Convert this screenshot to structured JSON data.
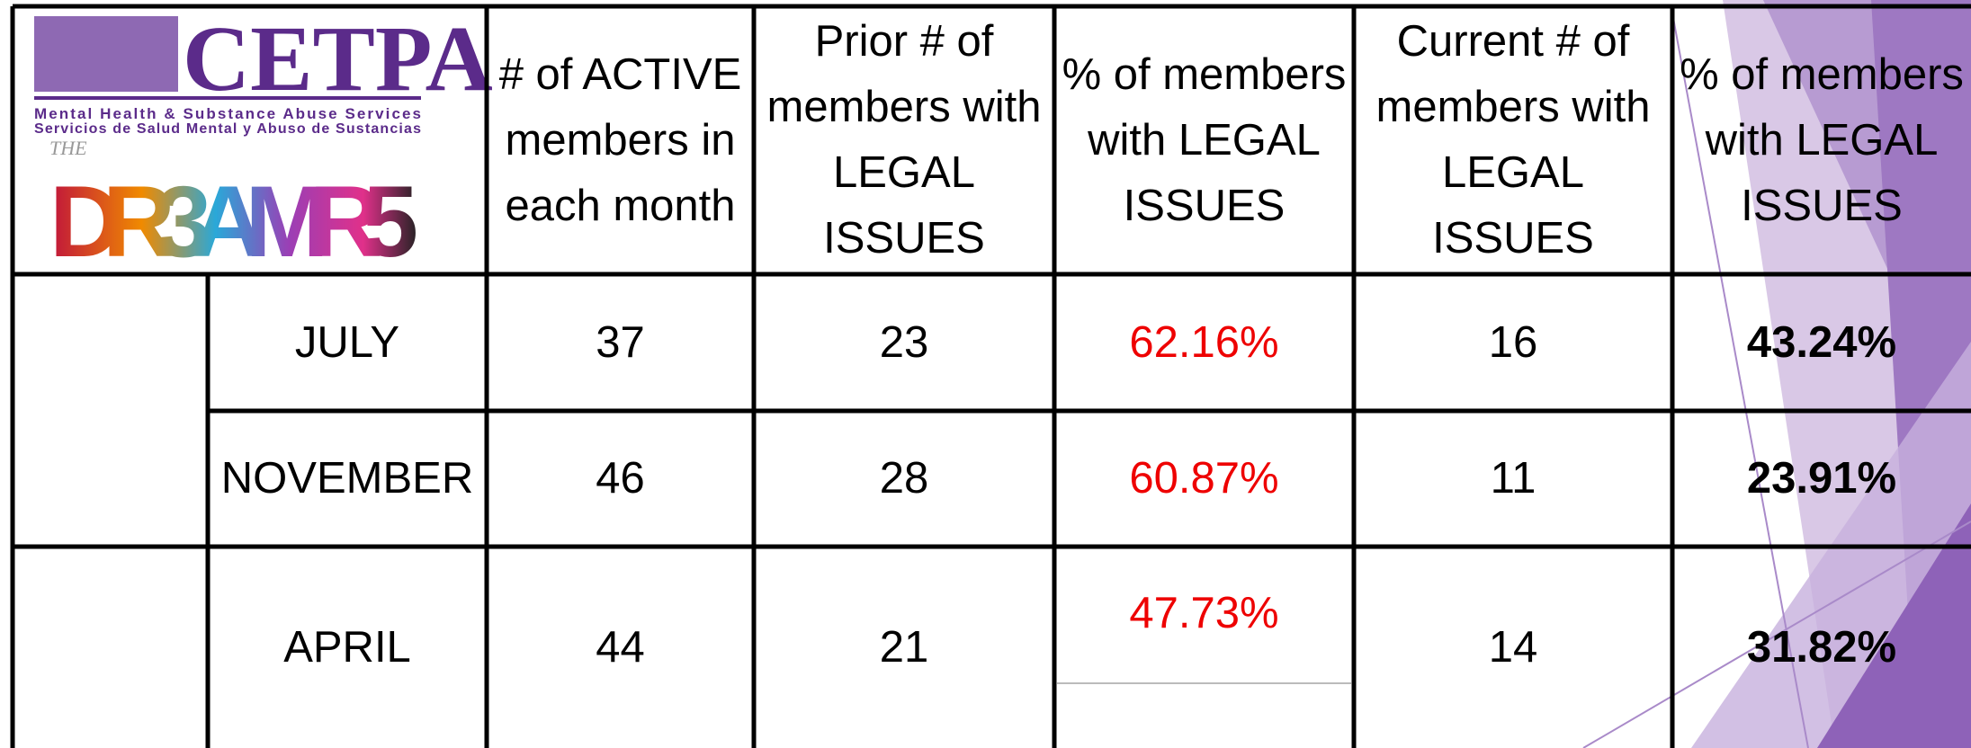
{
  "logo": {
    "name": "CETPA",
    "tagline_en": "Mental Health & Substance Abuse Services",
    "tagline_es": "Servicios de Salud Mental y Abuso de Sustancias",
    "the": "THE",
    "dreamers": "DR3AMR5"
  },
  "table": {
    "headers": [
      "# of ACTIVE members in each month",
      "Prior # of members with LEGAL ISSUES",
      "% of members with LEGAL ISSUES",
      "Current # of members with LEGAL ISSUES",
      "% of members with LEGAL ISSUES"
    ],
    "rows": [
      [
        "JULY",
        "37",
        "23",
        "62.16%",
        "16",
        "43.24%"
      ],
      [
        "NOVEMBER",
        "46",
        "28",
        "60.87%",
        "11",
        "23.91%"
      ],
      [
        "APRIL",
        "44",
        "21",
        "47.73%",
        "14",
        "31.82%"
      ]
    ]
  }
}
